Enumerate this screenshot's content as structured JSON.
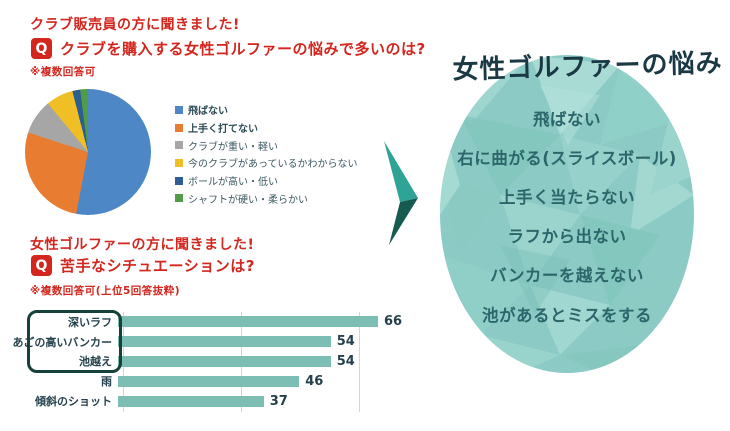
{
  "accent_colors": {
    "red": "#d2261e",
    "navy_text": "#24414d",
    "title_navy": "#1b3945",
    "bar_teal": "#7cbdb4",
    "ellipse_teal": "#8ccbc5",
    "arrow_light": "#2fa496",
    "arrow_dark": "#175a50",
    "highlight_border": "#15413a"
  },
  "survey1": {
    "heading": "クラブ販売員の方に聞きました!",
    "q_badge": "Q",
    "question": "クラブを購入する女性ゴルファーの悩みで多いのは?",
    "note": "※複数回答可"
  },
  "survey2": {
    "heading": "女性ゴルファーの方に聞きました!",
    "q_badge": "Q",
    "question": "苦手なシチュエーションは?",
    "note": "※複数回答可(上位5回答抜粋)"
  },
  "chart_data": [
    {
      "type": "pie",
      "title": "クラブを購入する女性ゴルファーの悩み",
      "categories": [
        "飛ばない",
        "上手く打てない",
        "クラブが重い・軽い",
        "今のクラブがあっているかわからない",
        "ボールが高い・低い",
        "シャフトが硬い・柔らかい"
      ],
      "values": [
        53,
        27,
        9,
        7,
        2,
        2
      ],
      "value_unit": "percent-of-circle-estimated",
      "colors": [
        "#4e87c5",
        "#e87d31",
        "#a6a6a6",
        "#f0be25",
        "#2e5d92",
        "#519c47"
      ],
      "bold_legend_categories": [
        "飛ばない",
        "上手く打てない"
      ],
      "legend_position": "right",
      "start_angle_deg": 0
    },
    {
      "type": "bar",
      "orientation": "horizontal",
      "title": "苦手なシチュエーション(上位5回答)",
      "categories": [
        "深いラフ",
        "あごの高いバンカー",
        "池越え",
        "雨",
        "傾斜のショット"
      ],
      "values": [
        66,
        54,
        54,
        46,
        37
      ],
      "bar_color": "#7cbdb4",
      "xlim": [
        0,
        70
      ],
      "gridline_values": [
        0,
        30,
        60
      ],
      "grid": "vertical-light-gray",
      "highlighted_top3": [
        "深いラフ",
        "あごの高いバンカー",
        "池越え"
      ]
    }
  ],
  "result": {
    "title": "女性ゴルファーの悩み",
    "items": [
      "飛ばない",
      "右に曲がる(スライスボール)",
      "上手く当たらない",
      "ラフから出ない",
      "バンカーを越えない",
      "池があるとミスをする"
    ]
  }
}
